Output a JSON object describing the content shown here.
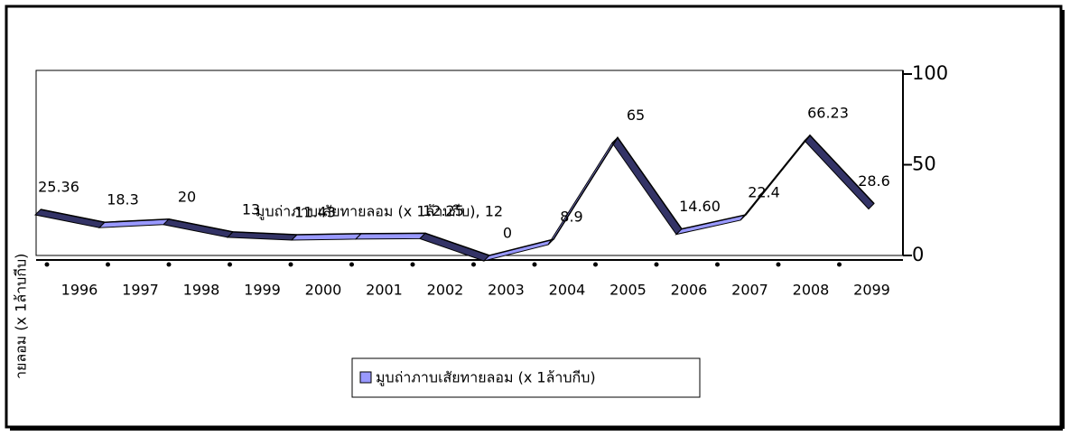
{
  "chart_data": {
    "type": "line",
    "y_label": "ายลอม (x 1ล้าบกีบ)",
    "categories": [
      "1996",
      "1997",
      "1998",
      "1999",
      "2000",
      "2001",
      "2002",
      "2003",
      "2004",
      "2005",
      "2006",
      "2007",
      "2008",
      "2099"
    ],
    "series": [
      {
        "name": "มูบถ่าภาบเสัยทายลอม (x 1ล้าบกีบ)",
        "color": "#9999ff",
        "values": [
          25.36,
          18.3,
          20,
          13,
          11.43,
          12,
          12.25,
          0,
          8.9,
          65,
          14.6,
          22.4,
          66.23,
          28.6
        ],
        "value_labels": [
          "25.36",
          "18.3",
          "20",
          "13",
          "11.43",
          "มูบถ่าภาบเสัยทายลอม (x 1ล้าบกีบ), 12",
          "12.25",
          "0",
          "8.9",
          "65",
          "14.60",
          "22.4",
          "66.23",
          "28.6"
        ]
      }
    ],
    "ylim": [
      0,
      100
    ],
    "yticks": [
      0,
      50,
      100
    ],
    "grid": false,
    "legend": "bottom"
  }
}
